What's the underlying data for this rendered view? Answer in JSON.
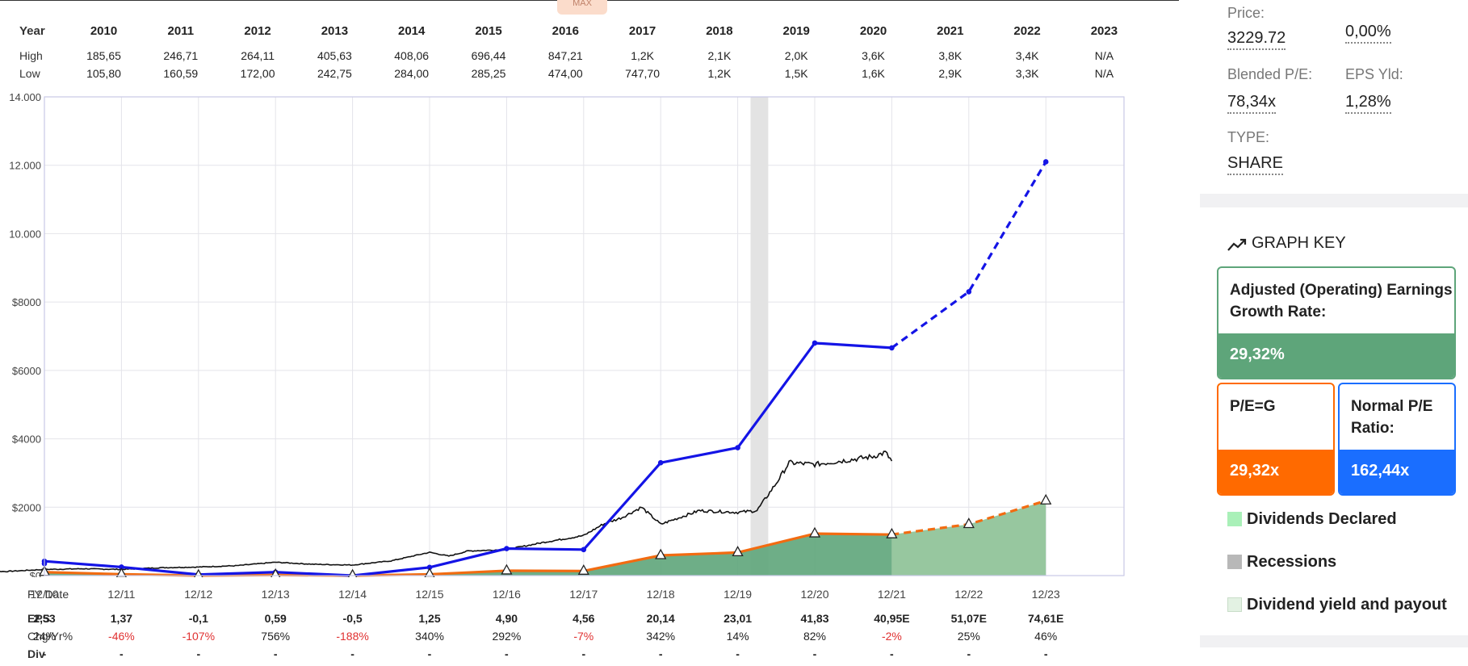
{
  "top_tab": "MAX",
  "high_low_table": {
    "year_label": "Year",
    "high_label": "High",
    "low_label": "Low",
    "years": [
      "2010",
      "2011",
      "2012",
      "2013",
      "2014",
      "2015",
      "2016",
      "2017",
      "2018",
      "2019",
      "2020",
      "2021",
      "2022",
      "2023"
    ],
    "high": [
      "185,65",
      "246,71",
      "264,11",
      "405,63",
      "408,06",
      "696,44",
      "847,21",
      "1,2K",
      "2,1K",
      "2,0K",
      "3,6K",
      "3,8K",
      "3,4K",
      "N/A"
    ],
    "low": [
      "105,80",
      "160,59",
      "172,00",
      "242,75",
      "284,00",
      "285,25",
      "474,00",
      "747,70",
      "1,2K",
      "1,5K",
      "1,6K",
      "2,9K",
      "3,3K",
      "N/A"
    ]
  },
  "chart_data": {
    "type": "line",
    "y_axis_labels": [
      "14.000",
      "12.000",
      "10.000",
      "$8000",
      "$6000",
      "$4000",
      "$2000",
      "$0"
    ],
    "ylim": [
      0,
      14000
    ],
    "x_labels": [
      "12/10",
      "12/11",
      "12/12",
      "12/13",
      "12/14",
      "12/15",
      "12/16",
      "12/17",
      "12/18",
      "12/19",
      "12/20",
      "12/21",
      "12/22",
      "12/23"
    ],
    "recession_band": [
      "2020-02",
      "2020-04"
    ],
    "grid": true,
    "series": [
      {
        "key": "normal_pe",
        "color": "#1414e6",
        "style": "solid-then-dashed",
        "values": [
          350,
          420,
          250,
          30,
          100,
          -20,
          240,
          790,
          760,
          3300,
          3740,
          6800,
          6660,
          8300,
          12100
        ]
      },
      {
        "key": "pe_g",
        "color": "#f26b11",
        "style": "solid-then-dashed",
        "values": [
          74,
          100,
          40,
          -3,
          17,
          -15,
          37,
          143,
          134,
          590,
          675,
          1226,
          1200,
          1500,
          2190
        ]
      },
      {
        "key": "price",
        "color": "#111111",
        "style": "solid",
        "points": [
          [
            "2010-01",
            140
          ],
          [
            "2010-06",
            120
          ],
          [
            "2010-12",
            180
          ],
          [
            "2011-06",
            200
          ],
          [
            "2011-12",
            180
          ],
          [
            "2012-06",
            230
          ],
          [
            "2012-12",
            250
          ],
          [
            "2013-06",
            290
          ],
          [
            "2013-12",
            390
          ],
          [
            "2014-06",
            330
          ],
          [
            "2014-12",
            310
          ],
          [
            "2015-06",
            430
          ],
          [
            "2015-12",
            680
          ],
          [
            "2016-03",
            570
          ],
          [
            "2016-06",
            720
          ],
          [
            "2016-12",
            760
          ],
          [
            "2017-06",
            980
          ],
          [
            "2017-12",
            1170
          ],
          [
            "2018-03",
            1500
          ],
          [
            "2018-06",
            1700
          ],
          [
            "2018-09",
            2000
          ],
          [
            "2018-12",
            1500
          ],
          [
            "2019-06",
            1900
          ],
          [
            "2019-12",
            1850
          ],
          [
            "2020-03",
            1900
          ],
          [
            "2020-06",
            2700
          ],
          [
            "2020-08",
            3300
          ],
          [
            "2020-12",
            3250
          ],
          [
            "2021-06",
            3400
          ],
          [
            "2021-09",
            3480
          ],
          [
            "2021-11",
            3600
          ],
          [
            "2021-12",
            3350
          ]
        ]
      }
    ],
    "dividends_declared": "-"
  },
  "bottom_table": {
    "fy_label": "FY Date",
    "eps_label": "EPS",
    "chg_label": "Chg/Yr%",
    "div_label": "Div",
    "eps": [
      "2,53",
      "1,37",
      "-0,1",
      "0,59",
      "-0,5",
      "1,25",
      "4,90",
      "4,56",
      "20,14",
      "23,01",
      "41,83",
      "40,95E",
      "51,07E",
      "74,61E"
    ],
    "chg": [
      "24%",
      "-46%",
      "-107%",
      "756%",
      "-188%",
      "340%",
      "292%",
      "-7%",
      "342%",
      "14%",
      "82%",
      "-2%",
      "25%",
      "46%"
    ],
    "div": [
      "-",
      "-",
      "-",
      "-",
      "-",
      "-",
      "-",
      "-",
      "-",
      "-",
      "-",
      "-",
      "-",
      "-"
    ]
  },
  "sidebar": {
    "price_label": "Price:",
    "price_value": "3229.72",
    "change_value": "0,00%",
    "blended_pe_label": "Blended P/E:",
    "blended_pe_value": "78,34x",
    "eps_yld_label": "EPS Yld:",
    "eps_yld_value": "1,28%",
    "type_label": "TYPE:",
    "type_value": "SHARE",
    "graph_key_title": "GRAPH KEY",
    "growth_box": {
      "title": "Adjusted (Operating) Earnings Growth Rate:",
      "value": "29,32%",
      "color": "#5ea57a",
      "border": "#5ea57a"
    },
    "peg_box": {
      "title": "P/E=G",
      "value": "29,32x",
      "color": "#ff6a00",
      "border": "#ff6a00"
    },
    "normal_pe_box": {
      "title": "Normal P/E Ratio:",
      "value": "162,44x",
      "color": "#1a6eff",
      "border": "#1a6eff"
    },
    "legend": [
      {
        "label": "Dividends Declared",
        "color": "#a9f0b8"
      },
      {
        "label": "Recessions",
        "color": "#b8b8b8"
      },
      {
        "label": "Dividend yield and payout",
        "color": "#e3f2e3"
      }
    ]
  }
}
